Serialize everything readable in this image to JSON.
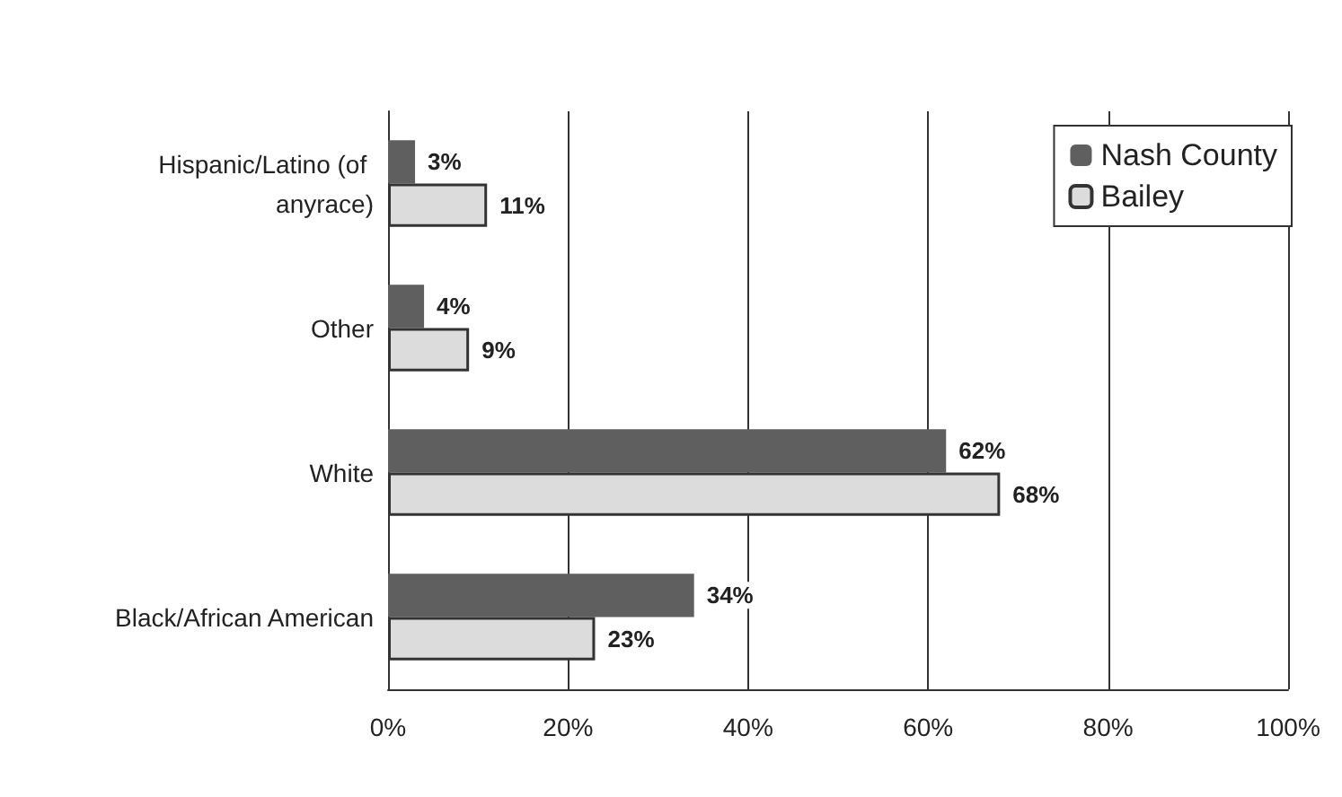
{
  "chart_data": {
    "type": "bar",
    "orientation": "horizontal",
    "categories": [
      "Hispanic/Latino (of anyrace)",
      "Other",
      "White",
      "Black/African American"
    ],
    "series": [
      {
        "name": "Nash County",
        "color": "#5f5f5f",
        "values": [
          3,
          4,
          62,
          34
        ],
        "value_labels": [
          "3%",
          "4%",
          "62%",
          "34%"
        ]
      },
      {
        "name": "Bailey",
        "color": "#dcdcdc",
        "values": [
          11,
          9,
          68,
          23
        ],
        "value_labels": [
          "11%",
          "9%",
          "68%",
          "23%"
        ]
      }
    ],
    "xlim": [
      0,
      100
    ],
    "xticks": [
      {
        "value": 0,
        "label": "0%"
      },
      {
        "value": 20,
        "label": "20%"
      },
      {
        "value": 40,
        "label": "40%"
      },
      {
        "value": 60,
        "label": "60%"
      },
      {
        "value": 80,
        "label": "80%"
      },
      {
        "value": 100,
        "label": "100%"
      }
    ],
    "grid": "x",
    "legend": "top right"
  }
}
